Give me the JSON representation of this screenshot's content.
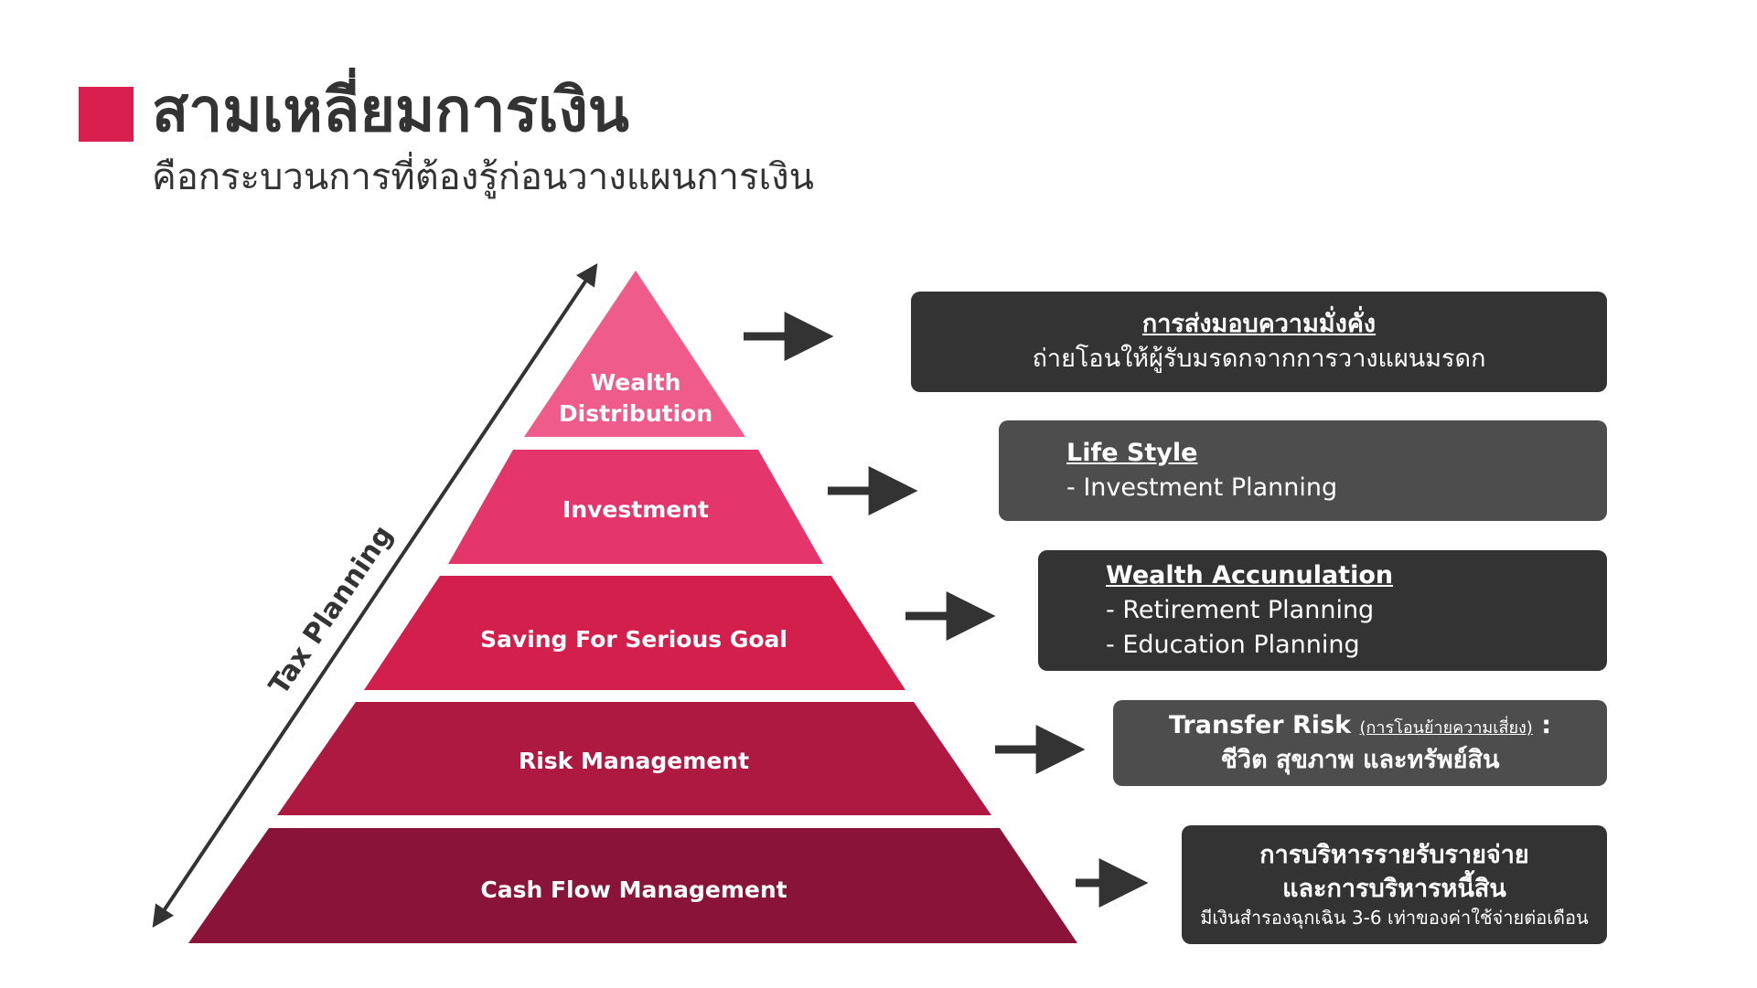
{
  "header": {
    "title": "สามเหลี่ยมการเงิน",
    "subtitle": "คือกระบวนการที่ต้องรู้ก่อนวางแผนการเงิน"
  },
  "pyramid": {
    "axis_label": "Tax Planning",
    "levels": [
      {
        "lines": [
          "Wealth",
          "Distribution"
        ],
        "color": "#ef5c8c"
      },
      {
        "lines": [
          "Investment"
        ],
        "color": "#e4366a"
      },
      {
        "lines": [
          "Saving For Serious Goal"
        ],
        "color": "#d31f4b"
      },
      {
        "lines": [
          "Risk Management"
        ],
        "color": "#ae1942"
      },
      {
        "lines": [
          "Cash Flow Management"
        ],
        "color": "#8a1339"
      }
    ]
  },
  "boxes": [
    {
      "head": "การส่งมอบความมั่งคั่ง",
      "line": "ถ่ายโอนให้ผู้รับมรดกจากการวางแผนมรดก",
      "color": "#333333"
    },
    {
      "head": "Life Style",
      "items": [
        "- Investment Planning"
      ],
      "color": "#4d4d4d"
    },
    {
      "head": "Wealth Accunulation",
      "items": [
        "- Retirement Planning",
        "- Education Planning"
      ],
      "color": "#333333"
    },
    {
      "lead": "Transfer Risk ",
      "paren": "(การโอนย้ายความเสี่ยง)",
      "colon": " :",
      "line": "ชีวิต สุขภาพ และทรัพย์สิน",
      "color": "#4d4d4d"
    },
    {
      "line1": "การบริหารรายรับรายจ่าย",
      "line2": "และการบริหารหนี้สิน",
      "note": "มีเงินสำรองฉุกเฉิน 3-6 เท่าของค่าใช้จ่ายต่อเดือน",
      "color": "#333333"
    }
  ],
  "colors": {
    "accent": "#d81f4e",
    "arrow": "#333333"
  }
}
